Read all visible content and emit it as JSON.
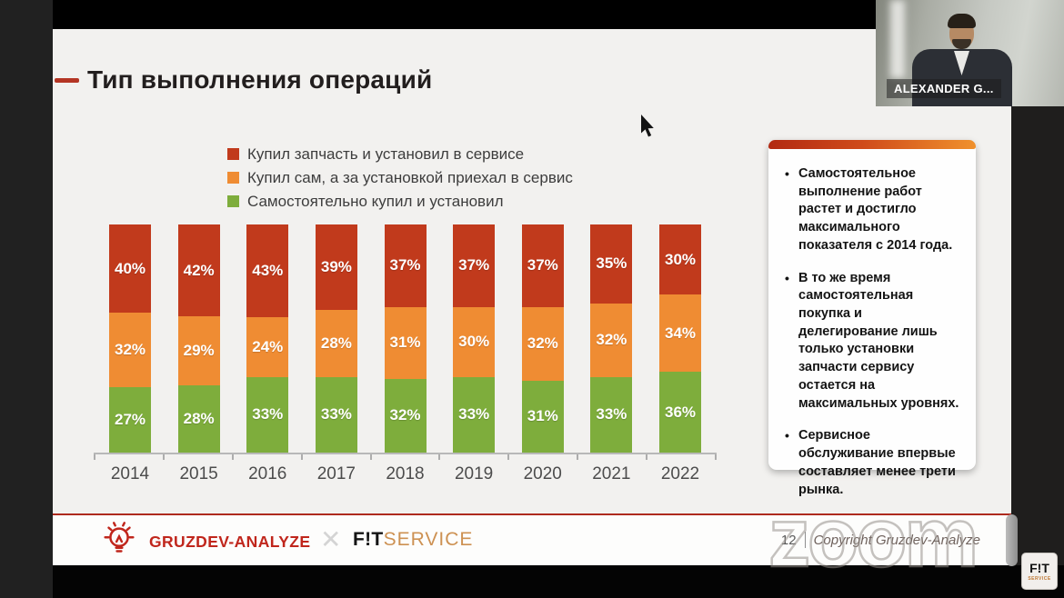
{
  "window": {
    "watermark": "zoom"
  },
  "webcam": {
    "name_label": "ALEXANDER G..."
  },
  "slide": {
    "title": "Тип выполнения операций",
    "accent_color": "#ae2a1e"
  },
  "chart_data": {
    "type": "bar",
    "stacked": true,
    "categories": [
      "2014",
      "2015",
      "2016",
      "2017",
      "2018",
      "2019",
      "2020",
      "2021",
      "2022"
    ],
    "series": [
      {
        "name": "Купил запчасть и установил в сервисе",
        "color": "#c13a1c",
        "values": [
          40,
          42,
          43,
          39,
          37,
          37,
          37,
          35,
          30
        ]
      },
      {
        "name": "Купил сам, а за установкой приехал в сервис",
        "color": "#ef8c33",
        "values": [
          32,
          29,
          24,
          28,
          31,
          30,
          32,
          32,
          34
        ]
      },
      {
        "name": "Самостоятельно купил и установил",
        "color": "#7ead3c",
        "values": [
          27,
          28,
          33,
          33,
          32,
          33,
          31,
          33,
          36
        ]
      }
    ],
    "value_suffix": "%",
    "ylim": [
      0,
      100
    ],
    "grid": false,
    "legend_position": "top-left",
    "xlabel": "",
    "ylabel": ""
  },
  "side_panel": {
    "bullets": [
      "Самостоятельное выполнение работ растет и достигло максимального показателя с 2014 года.",
      "В то же время самостоятельная покупка и делегирование лишь только установки запчасти сервису остается на максимальных уровнях.",
      "Сервисное обслуживание впервые составляет менее трети рынка."
    ]
  },
  "footer": {
    "brand_analyze": "GRUZDEV-ANALYZE",
    "multiply_sign": "✕",
    "brand_fit": "F!T",
    "brand_service": "SERVICE",
    "page_number": "12",
    "copyright": "Copyright Gruzdev-Analyze"
  },
  "badge": {
    "line1": "F!T",
    "line2": "SERVICE"
  }
}
